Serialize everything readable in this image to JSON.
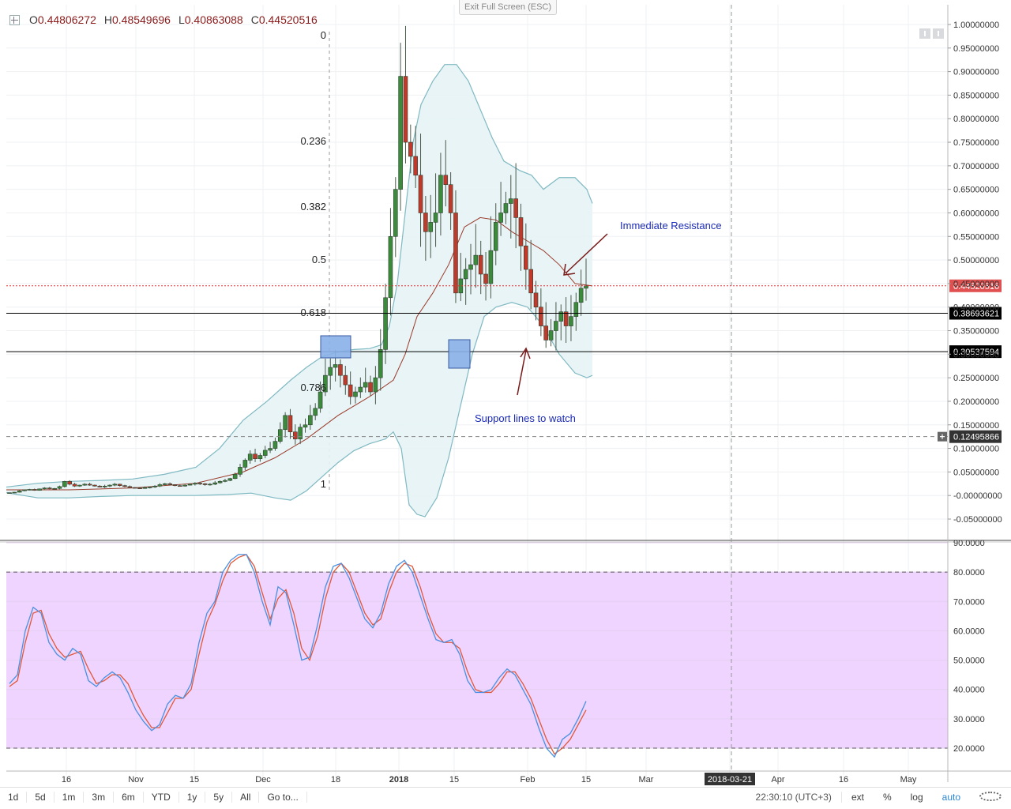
{
  "header": {
    "open_label": "O",
    "open": "0.44806272",
    "high_label": "H",
    "high": "0.48549696",
    "low_label": "L",
    "low": "0.40863088",
    "close_label": "C",
    "close": "0.44520516",
    "exit_fullscreen": "Exit Full Screen (ESC)"
  },
  "colors": {
    "up": "#3c8a3c",
    "down": "#c0392b",
    "band": "#7fb9c2",
    "ma": "#9b3a2a",
    "k": "#4a90e2",
    "d": "#e0593a",
    "stoch_bg": "#efd4ff"
  },
  "icons": [
    "pane-toggle-icon",
    "scroll-left-icon",
    "scroll-right-icon",
    "crosshair-plus-icon",
    "settings-gear-icon"
  ],
  "chart_data": [
    {
      "type": "candlestick",
      "title": "",
      "x_ticks": [
        "16",
        "Nov",
        "15",
        "Dec",
        "18",
        "2018",
        "15",
        "Feb",
        "15",
        "Mar",
        "2018-03-21",
        "Apr",
        "16",
        "May"
      ],
      "y_ticks": [
        "1.00000000",
        "0.95000000",
        "0.90000000",
        "0.85000000",
        "0.80000000",
        "0.75000000",
        "0.70000000",
        "0.65000000",
        "0.60000000",
        "0.55000000",
        "0.50000000",
        "0.45000000",
        "0.40000000",
        "0.35000000",
        "0.30000000",
        "0.25000000",
        "0.20000000",
        "0.15000000",
        "0.10000000",
        "0.05000000",
        "-0.00000000",
        "-0.05000000"
      ],
      "ylim": [
        -0.07,
        1.02
      ],
      "price_lines": [
        {
          "label": "0.44520516",
          "value": 0.4452,
          "style": "dotted-red"
        },
        {
          "label": "0.38693621",
          "value": 0.3869,
          "style": "solid-black"
        },
        {
          "label": "0.30537594",
          "value": 0.3054,
          "style": "solid-black"
        },
        {
          "label": "0.12495866",
          "value": 0.125,
          "style": "dashed-grey"
        }
      ],
      "fibonacci": [
        {
          "label": "0",
          "value": 0.98
        },
        {
          "label": "0.236",
          "value": 0.74
        },
        {
          "label": "0.382",
          "value": 0.6
        },
        {
          "label": "0.5",
          "value": 0.486
        },
        {
          "label": "0.618",
          "value": 0.373
        },
        {
          "label": "0.786",
          "value": 0.205
        },
        {
          "label": "1",
          "value": 0.0
        }
      ],
      "annotations": [
        {
          "text": "Immediate Resistance"
        },
        {
          "text": "Support lines to watch"
        }
      ],
      "price_series": [
        0.006,
        0.007,
        0.01,
        0.012,
        0.013,
        0.011,
        0.014,
        0.016,
        0.014,
        0.015,
        0.019,
        0.03,
        0.024,
        0.02,
        0.022,
        0.024,
        0.022,
        0.02,
        0.018,
        0.02,
        0.022,
        0.024,
        0.021,
        0.019,
        0.017,
        0.016,
        0.015,
        0.017,
        0.018,
        0.02,
        0.023,
        0.025,
        0.023,
        0.021,
        0.02,
        0.022,
        0.024,
        0.026,
        0.025,
        0.023,
        0.024,
        0.027,
        0.03,
        0.032,
        0.036,
        0.045,
        0.06,
        0.075,
        0.088,
        0.078,
        0.085,
        0.096,
        0.1,
        0.115,
        0.14,
        0.17,
        0.135,
        0.12,
        0.145,
        0.15,
        0.17,
        0.185,
        0.22,
        0.255,
        0.272,
        0.278,
        0.255,
        0.235,
        0.21,
        0.22,
        0.23,
        0.24,
        0.22,
        0.25,
        0.31,
        0.42,
        0.55,
        0.65,
        0.89,
        0.75,
        0.72,
        0.68,
        0.6,
        0.56,
        0.58,
        0.6,
        0.68,
        0.66,
        0.6,
        0.43,
        0.46,
        0.48,
        0.49,
        0.51,
        0.47,
        0.45,
        0.52,
        0.58,
        0.6,
        0.62,
        0.63,
        0.59,
        0.53,
        0.48,
        0.43,
        0.4,
        0.36,
        0.33,
        0.35,
        0.37,
        0.39,
        0.36,
        0.38,
        0.41,
        0.44,
        0.445
      ],
      "bollinger_upper": [
        [
          0,
          0.018
        ],
        [
          40,
          0.026
        ],
        [
          80,
          0.03
        ],
        [
          120,
          0.032
        ],
        [
          160,
          0.035
        ],
        [
          200,
          0.045
        ],
        [
          240,
          0.06
        ],
        [
          270,
          0.1
        ],
        [
          300,
          0.16
        ],
        [
          330,
          0.2
        ],
        [
          360,
          0.245
        ],
        [
          380,
          0.272
        ],
        [
          400,
          0.295
        ],
        [
          420,
          0.305
        ],
        [
          440,
          0.31
        ],
        [
          460,
          0.312
        ],
        [
          475,
          0.32
        ],
        [
          485,
          0.36
        ],
        [
          495,
          0.45
        ],
        [
          505,
          0.6
        ],
        [
          515,
          0.75
        ],
        [
          525,
          0.83
        ],
        [
          540,
          0.88
        ],
        [
          555,
          0.915
        ],
        [
          570,
          0.915
        ],
        [
          585,
          0.88
        ],
        [
          600,
          0.82
        ],
        [
          615,
          0.76
        ],
        [
          630,
          0.71
        ],
        [
          650,
          0.69
        ],
        [
          665,
          0.68
        ],
        [
          680,
          0.65
        ],
        [
          700,
          0.675
        ],
        [
          720,
          0.675
        ],
        [
          735,
          0.65
        ],
        [
          742,
          0.62
        ]
      ],
      "bollinger_lower": [
        [
          0,
          0.006
        ],
        [
          40,
          -0.005
        ],
        [
          80,
          -0.005
        ],
        [
          120,
          -0.002
        ],
        [
          160,
          0.0
        ],
        [
          200,
          0.0
        ],
        [
          240,
          0.0
        ],
        [
          280,
          0.002
        ],
        [
          310,
          0.005
        ],
        [
          340,
          -0.005
        ],
        [
          360,
          -0.01
        ],
        [
          380,
          0.01
        ],
        [
          400,
          0.04
        ],
        [
          420,
          0.07
        ],
        [
          440,
          0.095
        ],
        [
          460,
          0.11
        ],
        [
          480,
          0.12
        ],
        [
          490,
          0.135
        ],
        [
          500,
          0.1
        ],
        [
          510,
          -0.02
        ],
        [
          520,
          -0.04
        ],
        [
          530,
          -0.045
        ],
        [
          545,
          -0.005
        ],
        [
          560,
          0.08
        ],
        [
          575,
          0.19
        ],
        [
          590,
          0.3
        ],
        [
          605,
          0.38
        ],
        [
          620,
          0.4
        ],
        [
          640,
          0.41
        ],
        [
          660,
          0.4
        ],
        [
          680,
          0.36
        ],
        [
          700,
          0.3
        ],
        [
          720,
          0.26
        ],
        [
          735,
          0.25
        ],
        [
          742,
          0.255
        ]
      ],
      "bollinger_mid": [
        [
          0,
          0.012
        ],
        [
          80,
          0.012
        ],
        [
          160,
          0.016
        ],
        [
          240,
          0.026
        ],
        [
          300,
          0.05
        ],
        [
          340,
          0.08
        ],
        [
          380,
          0.12
        ],
        [
          420,
          0.17
        ],
        [
          460,
          0.21
        ],
        [
          490,
          0.245
        ],
        [
          505,
          0.3
        ],
        [
          520,
          0.38
        ],
        [
          540,
          0.43
        ],
        [
          560,
          0.49
        ],
        [
          580,
          0.57
        ],
        [
          600,
          0.59
        ],
        [
          620,
          0.585
        ],
        [
          640,
          0.56
        ],
        [
          660,
          0.54
        ],
        [
          680,
          0.52
        ],
        [
          700,
          0.49
        ],
        [
          720,
          0.45
        ],
        [
          742,
          0.445
        ]
      ]
    },
    {
      "type": "line",
      "title": "",
      "y_ticks": [
        "90.0000",
        "80.0000",
        "70.0000",
        "60.0000",
        "50.0000",
        "40.0000",
        "30.0000",
        "20.0000"
      ],
      "ylim": [
        16,
        91
      ],
      "bands": [
        20,
        80
      ],
      "series": [
        {
          "values": [
            [
              10,
              42
            ],
            [
              20,
              45
            ],
            [
              30,
              60
            ],
            [
              40,
              68
            ],
            [
              50,
              66
            ],
            [
              60,
              56
            ],
            [
              70,
              52
            ],
            [
              80,
              50
            ],
            [
              90,
              54
            ],
            [
              100,
              52
            ],
            [
              110,
              43
            ],
            [
              120,
              41
            ],
            [
              130,
              44
            ],
            [
              140,
              46
            ],
            [
              150,
              44
            ],
            [
              160,
              39
            ],
            [
              170,
              33
            ],
            [
              180,
              29
            ],
            [
              190,
              26
            ],
            [
              200,
              28
            ],
            [
              210,
              35
            ],
            [
              220,
              38
            ],
            [
              230,
              37
            ],
            [
              240,
              42
            ],
            [
              250,
              56
            ],
            [
              260,
              66
            ],
            [
              270,
              70
            ],
            [
              280,
              80
            ],
            [
              290,
              84
            ],
            [
              300,
              86
            ],
            [
              310,
              86
            ],
            [
              320,
              80
            ],
            [
              330,
              70
            ],
            [
              340,
              62
            ],
            [
              350,
              75
            ],
            [
              360,
              73
            ],
            [
              370,
              62
            ],
            [
              380,
              50
            ],
            [
              390,
              51
            ],
            [
              400,
              62
            ],
            [
              410,
              75
            ],
            [
              420,
              82
            ],
            [
              430,
              83
            ],
            [
              440,
              78
            ],
            [
              450,
              71
            ],
            [
              460,
              64
            ],
            [
              470,
              61
            ],
            [
              480,
              66
            ],
            [
              490,
              76
            ],
            [
              500,
              82
            ],
            [
              510,
              84
            ],
            [
              520,
              80
            ],
            [
              530,
              72
            ],
            [
              540,
              64
            ],
            [
              550,
              57
            ],
            [
              560,
              56
            ],
            [
              570,
              57
            ],
            [
              580,
              52
            ],
            [
              590,
              43
            ],
            [
              600,
              39
            ],
            [
              610,
              39
            ],
            [
              620,
              40
            ],
            [
              630,
              44
            ],
            [
              640,
              47
            ],
            [
              650,
              45
            ],
            [
              660,
              40
            ],
            [
              670,
              35
            ],
            [
              680,
              27
            ],
            [
              690,
              20
            ],
            [
              700,
              17
            ],
            [
              710,
              23
            ],
            [
              720,
              25
            ],
            [
              730,
              30
            ],
            [
              740,
              36
            ]
          ]
        },
        {
          "values": [
            [
              10,
              41
            ],
            [
              20,
              43
            ],
            [
              30,
              56
            ],
            [
              40,
              66
            ],
            [
              50,
              67
            ],
            [
              60,
              59
            ],
            [
              70,
              54
            ],
            [
              80,
              51
            ],
            [
              90,
              52
            ],
            [
              100,
              53
            ],
            [
              110,
              47
            ],
            [
              120,
              42
            ],
            [
              130,
              43
            ],
            [
              140,
              45
            ],
            [
              150,
              45
            ],
            [
              160,
              42
            ],
            [
              170,
              36
            ],
            [
              180,
              31
            ],
            [
              190,
              27
            ],
            [
              200,
              27
            ],
            [
              210,
              32
            ],
            [
              220,
              37
            ],
            [
              230,
              37
            ],
            [
              240,
              40
            ],
            [
              250,
              52
            ],
            [
              260,
              63
            ],
            [
              270,
              69
            ],
            [
              280,
              77
            ],
            [
              290,
              83
            ],
            [
              300,
              85
            ],
            [
              310,
              86
            ],
            [
              320,
              82
            ],
            [
              330,
              73
            ],
            [
              340,
              64
            ],
            [
              350,
              71
            ],
            [
              360,
              74
            ],
            [
              370,
              66
            ],
            [
              380,
              54
            ],
            [
              390,
              50
            ],
            [
              400,
              58
            ],
            [
              410,
              71
            ],
            [
              420,
              80
            ],
            [
              430,
              83
            ],
            [
              440,
              80
            ],
            [
              450,
              73
            ],
            [
              460,
              66
            ],
            [
              470,
              62
            ],
            [
              480,
              64
            ],
            [
              490,
              73
            ],
            [
              500,
              80
            ],
            [
              510,
              83
            ],
            [
              520,
              82
            ],
            [
              530,
              75
            ],
            [
              540,
              66
            ],
            [
              550,
              59
            ],
            [
              560,
              56
            ],
            [
              570,
              56
            ],
            [
              580,
              54
            ],
            [
              590,
              46
            ],
            [
              600,
              40
            ],
            [
              610,
              39
            ],
            [
              620,
              39
            ],
            [
              630,
              42
            ],
            [
              640,
              46
            ],
            [
              650,
              46
            ],
            [
              660,
              42
            ],
            [
              670,
              37
            ],
            [
              680,
              30
            ],
            [
              690,
              23
            ],
            [
              700,
              18
            ],
            [
              710,
              20
            ],
            [
              720,
              23
            ],
            [
              730,
              28
            ],
            [
              740,
              33
            ]
          ]
        }
      ]
    }
  ],
  "bottom": {
    "ranges": [
      "1d",
      "5d",
      "1m",
      "3m",
      "6m",
      "YTD",
      "1y",
      "5y",
      "All",
      "Go to..."
    ],
    "clock": "22:30:10 (UTC+3)",
    "ext": "ext",
    "pct": "%",
    "log": "log",
    "auto": "auto"
  }
}
